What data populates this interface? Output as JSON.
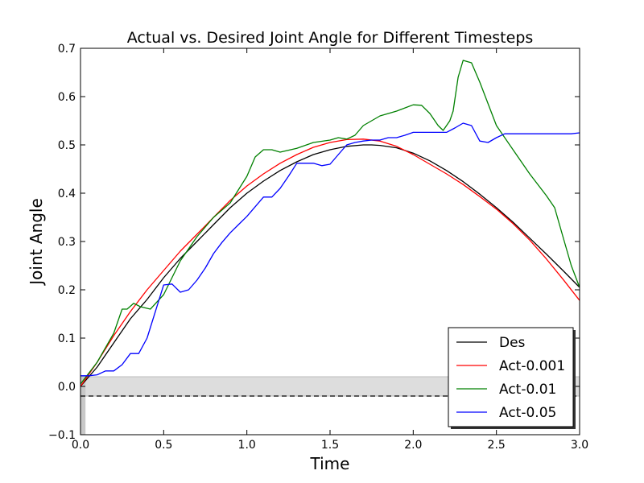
{
  "chart_data": {
    "type": "line",
    "title": "Actual vs. Desired Joint Angle for Different Timesteps",
    "xlabel": "Time",
    "ylabel": "Joint Angle",
    "xlim": [
      0,
      3.0
    ],
    "ylim": [
      -0.1,
      0.7
    ],
    "xticks": [
      "0.0",
      "0.5",
      "1.0",
      "1.5",
      "2.0",
      "2.5",
      "3.0"
    ],
    "yticks": [
      "−0.1",
      "0.0",
      "0.1",
      "0.2",
      "0.3",
      "0.4",
      "0.5",
      "0.6",
      "0.7"
    ],
    "grid": false,
    "legend_position": "lower-right",
    "reference_line": {
      "y": -0.02,
      "style": "dashed",
      "color": "#000000"
    },
    "shaded_band": {
      "y0": -0.02,
      "y1": 0.02,
      "x0": 0.0,
      "x1": 3.0,
      "color": "#dddddd"
    },
    "shaded_strip": {
      "x0": 0.0,
      "x1": 0.03,
      "y0": -0.1,
      "y1": 0.02,
      "color": "#c8c8c8"
    },
    "series": [
      {
        "name": "Des",
        "color": "#000000",
        "x": [
          0.0,
          0.1,
          0.2,
          0.3,
          0.4,
          0.5,
          0.6,
          0.7,
          0.8,
          0.9,
          1.0,
          1.1,
          1.2,
          1.3,
          1.4,
          1.5,
          1.6,
          1.7,
          1.75,
          1.8,
          1.9,
          2.0,
          2.1,
          2.2,
          2.3,
          2.4,
          2.5,
          2.6,
          2.7,
          2.8,
          2.9,
          3.0
        ],
        "y": [
          0.0,
          0.04,
          0.09,
          0.14,
          0.18,
          0.225,
          0.265,
          0.3,
          0.335,
          0.37,
          0.4,
          0.425,
          0.447,
          0.465,
          0.48,
          0.49,
          0.497,
          0.5,
          0.5,
          0.499,
          0.494,
          0.483,
          0.467,
          0.447,
          0.424,
          0.398,
          0.37,
          0.34,
          0.307,
          0.274,
          0.24,
          0.205
        ]
      },
      {
        "name": "Act-0.001",
        "color": "#ff0000",
        "x": [
          0.0,
          0.1,
          0.2,
          0.3,
          0.4,
          0.5,
          0.6,
          0.7,
          0.8,
          0.9,
          1.0,
          1.1,
          1.2,
          1.3,
          1.4,
          1.5,
          1.6,
          1.7,
          1.8,
          1.9,
          2.0,
          2.1,
          2.2,
          2.3,
          2.4,
          2.5,
          2.6,
          2.7,
          2.8,
          2.9,
          3.0
        ],
        "y": [
          0.0,
          0.05,
          0.105,
          0.155,
          0.2,
          0.24,
          0.28,
          0.315,
          0.35,
          0.385,
          0.415,
          0.44,
          0.462,
          0.48,
          0.495,
          0.505,
          0.511,
          0.512,
          0.508,
          0.497,
          0.48,
          0.46,
          0.44,
          0.418,
          0.393,
          0.367,
          0.337,
          0.303,
          0.264,
          0.222,
          0.178
        ]
      },
      {
        "name": "Act-0.01",
        "color": "#008000",
        "x": [
          0.0,
          0.1,
          0.2,
          0.25,
          0.28,
          0.32,
          0.36,
          0.42,
          0.5,
          0.6,
          0.7,
          0.8,
          0.9,
          1.0,
          1.05,
          1.1,
          1.15,
          1.2,
          1.3,
          1.4,
          1.5,
          1.55,
          1.6,
          1.65,
          1.7,
          1.8,
          1.9,
          2.0,
          2.05,
          2.1,
          2.15,
          2.18,
          2.2,
          2.22,
          2.24,
          2.27,
          2.3,
          2.35,
          2.4,
          2.5,
          2.6,
          2.7,
          2.8,
          2.85,
          2.9,
          2.95,
          3.0
        ],
        "y": [
          0.005,
          0.05,
          0.11,
          0.16,
          0.16,
          0.172,
          0.165,
          0.16,
          0.19,
          0.26,
          0.31,
          0.35,
          0.38,
          0.435,
          0.475,
          0.49,
          0.49,
          0.485,
          0.493,
          0.505,
          0.51,
          0.515,
          0.512,
          0.52,
          0.54,
          0.56,
          0.57,
          0.583,
          0.582,
          0.565,
          0.54,
          0.53,
          0.54,
          0.55,
          0.57,
          0.64,
          0.675,
          0.67,
          0.63,
          0.54,
          0.49,
          0.44,
          0.395,
          0.37,
          0.31,
          0.25,
          0.205
        ]
      },
      {
        "name": "Act-0.05",
        "color": "#0000ff",
        "x": [
          0.0,
          0.05,
          0.1,
          0.15,
          0.2,
          0.25,
          0.3,
          0.35,
          0.4,
          0.45,
          0.5,
          0.55,
          0.6,
          0.65,
          0.7,
          0.75,
          0.8,
          0.85,
          0.9,
          0.95,
          1.0,
          1.05,
          1.1,
          1.15,
          1.2,
          1.25,
          1.3,
          1.35,
          1.4,
          1.45,
          1.5,
          1.55,
          1.6,
          1.65,
          1.7,
          1.75,
          1.8,
          1.85,
          1.9,
          1.95,
          2.0,
          2.05,
          2.1,
          2.15,
          2.2,
          2.25,
          2.3,
          2.35,
          2.4,
          2.45,
          2.5,
          2.55,
          2.6,
          2.65,
          2.7,
          2.75,
          2.8,
          2.85,
          2.9,
          2.95,
          3.0
        ],
        "y": [
          0.022,
          0.022,
          0.024,
          0.032,
          0.032,
          0.045,
          0.068,
          0.068,
          0.1,
          0.155,
          0.21,
          0.212,
          0.195,
          0.2,
          0.22,
          0.245,
          0.275,
          0.298,
          0.318,
          0.335,
          0.352,
          0.372,
          0.392,
          0.392,
          0.41,
          0.435,
          0.462,
          0.462,
          0.462,
          0.457,
          0.46,
          0.48,
          0.5,
          0.505,
          0.508,
          0.51,
          0.51,
          0.515,
          0.515,
          0.52,
          0.526,
          0.526,
          0.526,
          0.526,
          0.526,
          0.535,
          0.545,
          0.54,
          0.508,
          0.505,
          0.515,
          0.523,
          0.523,
          0.523,
          0.523,
          0.523,
          0.523,
          0.523,
          0.523,
          0.523,
          0.525
        ]
      }
    ]
  }
}
